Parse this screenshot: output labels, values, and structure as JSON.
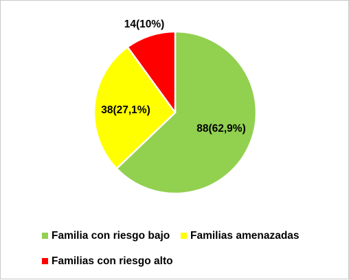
{
  "chart_data": {
    "type": "pie",
    "title": "",
    "slices": [
      {
        "name": "Familia con riesgo bajo",
        "value": 88,
        "label": "88(62,9%)",
        "color": "#92d050"
      },
      {
        "name": "Familias amenazadas",
        "value": 38,
        "label": "38(27,1%)",
        "color": "#ffff00"
      },
      {
        "name": "Familias con riesgo alto",
        "value": 14,
        "label": "14(10%)",
        "color": "#ff0000"
      }
    ],
    "start": "12 o'clock",
    "direction": "clockwise",
    "slice_border_color": "#ffffff",
    "legend_position": "bottom"
  }
}
